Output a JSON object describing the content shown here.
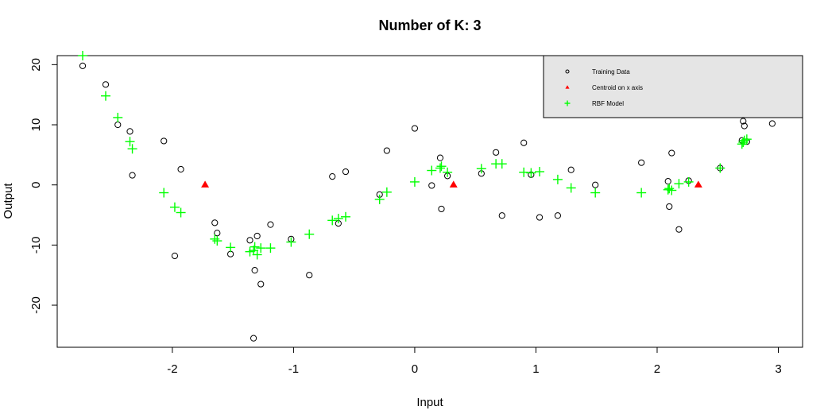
{
  "chart_data": {
    "type": "scatter",
    "title": "Number of K: 3",
    "xlabel": "Input",
    "ylabel": "Output",
    "xlim": [
      -2.95,
      3.2
    ],
    "ylim": [
      -27,
      21.5
    ],
    "xticks": [
      -2,
      -1,
      0,
      1,
      2,
      3
    ],
    "yticks": [
      -20,
      -10,
      0,
      10,
      20
    ],
    "legend_position": "top-right",
    "series": [
      {
        "name": "Training Data",
        "marker": "circle",
        "color": "#000000",
        "points": [
          [
            -2.74,
            19.8
          ],
          [
            -2.55,
            16.7
          ],
          [
            -2.45,
            10.0
          ],
          [
            -2.35,
            8.9
          ],
          [
            -2.33,
            1.6
          ],
          [
            -2.07,
            7.3
          ],
          [
            -1.93,
            2.6
          ],
          [
            -1.98,
            -11.8
          ],
          [
            -1.65,
            -6.3
          ],
          [
            -1.63,
            -8.0
          ],
          [
            -1.52,
            -11.5
          ],
          [
            -1.36,
            -9.2
          ],
          [
            -1.32,
            -14.2
          ],
          [
            -1.3,
            -8.5
          ],
          [
            -1.27,
            -16.5
          ],
          [
            -1.33,
            -25.5
          ],
          [
            -1.19,
            -6.6
          ],
          [
            -1.02,
            -9.0
          ],
          [
            -0.87,
            -15.0
          ],
          [
            -0.68,
            1.4
          ],
          [
            -0.63,
            -6.4
          ],
          [
            -0.57,
            2.2
          ],
          [
            -0.29,
            -1.6
          ],
          [
            -0.23,
            5.7
          ],
          [
            0.0,
            9.4
          ],
          [
            0.14,
            -0.1
          ],
          [
            0.21,
            4.5
          ],
          [
            0.22,
            -4.0
          ],
          [
            0.27,
            1.5
          ],
          [
            0.55,
            1.9
          ],
          [
            0.67,
            5.4
          ],
          [
            0.72,
            -5.1
          ],
          [
            0.9,
            7.0
          ],
          [
            0.96,
            1.7
          ],
          [
            1.03,
            -5.4
          ],
          [
            1.18,
            -5.1
          ],
          [
            1.29,
            2.5
          ],
          [
            1.49,
            0.0
          ],
          [
            1.87,
            3.7
          ],
          [
            2.09,
            0.6
          ],
          [
            2.1,
            -3.6
          ],
          [
            2.12,
            5.3
          ],
          [
            2.18,
            -7.4
          ],
          [
            2.26,
            0.7
          ],
          [
            2.52,
            2.8
          ],
          [
            2.7,
            7.4
          ],
          [
            2.71,
            10.6
          ],
          [
            2.72,
            9.8
          ],
          [
            2.74,
            7.2
          ],
          [
            2.95,
            10.2
          ]
        ]
      },
      {
        "name": "Centroid on x axis",
        "marker": "triangle",
        "color": "#ff0000",
        "points": [
          [
            -1.73,
            0
          ],
          [
            0.32,
            0
          ],
          [
            2.34,
            0
          ]
        ]
      },
      {
        "name": "RBF Model",
        "marker": "plus",
        "color": "#00ff00",
        "points": [
          [
            -2.74,
            21.5
          ],
          [
            -2.55,
            14.8
          ],
          [
            -2.45,
            11.2
          ],
          [
            -2.35,
            7.2
          ],
          [
            -2.33,
            6.0
          ],
          [
            -2.07,
            -1.3
          ],
          [
            -1.98,
            -3.7
          ],
          [
            -1.93,
            -4.6
          ],
          [
            -1.65,
            -9.0
          ],
          [
            -1.63,
            -9.3
          ],
          [
            -1.52,
            -10.4
          ],
          [
            -1.36,
            -11.1
          ],
          [
            -1.33,
            -10.9
          ],
          [
            -1.32,
            -10.3
          ],
          [
            -1.3,
            -11.6
          ],
          [
            -1.27,
            -10.5
          ],
          [
            -1.19,
            -10.5
          ],
          [
            -1.02,
            -9.5
          ],
          [
            -0.87,
            -8.2
          ],
          [
            -0.68,
            -5.9
          ],
          [
            -0.63,
            -5.6
          ],
          [
            -0.57,
            -5.3
          ],
          [
            -0.29,
            -2.4
          ],
          [
            -0.23,
            -1.2
          ],
          [
            0.0,
            0.5
          ],
          [
            0.14,
            2.4
          ],
          [
            0.21,
            2.8
          ],
          [
            0.22,
            3.1
          ],
          [
            0.27,
            2.1
          ],
          [
            0.55,
            2.7
          ],
          [
            0.67,
            3.5
          ],
          [
            0.72,
            3.5
          ],
          [
            0.9,
            2.1
          ],
          [
            0.96,
            2.0
          ],
          [
            1.03,
            2.2
          ],
          [
            1.18,
            0.9
          ],
          [
            1.29,
            -0.5
          ],
          [
            1.49,
            -1.3
          ],
          [
            1.87,
            -1.3
          ],
          [
            2.09,
            -0.8
          ],
          [
            2.1,
            -0.6
          ],
          [
            2.12,
            -0.9
          ],
          [
            2.18,
            0.2
          ],
          [
            2.26,
            0.5
          ],
          [
            2.52,
            2.8
          ],
          [
            2.7,
            6.8
          ],
          [
            2.71,
            7.1
          ],
          [
            2.72,
            7.4
          ],
          [
            2.74,
            7.6
          ]
        ]
      }
    ]
  }
}
